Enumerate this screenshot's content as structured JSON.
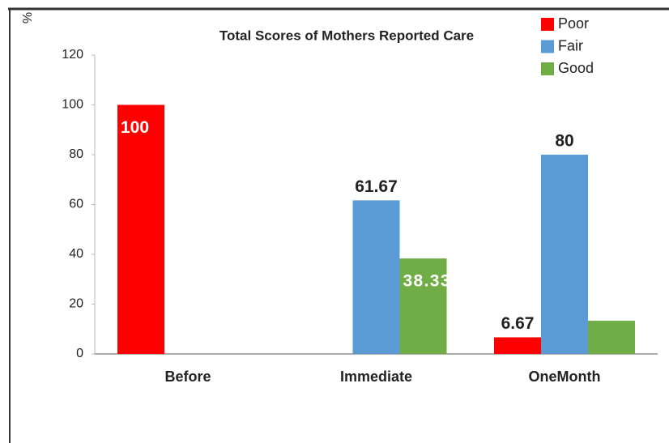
{
  "chart_data": {
    "type": "bar",
    "title": "Total Scores of Mothers Reported Care",
    "y_label": "%",
    "categories": [
      "Before",
      "Immediate",
      "OneMonth"
    ],
    "series": [
      {
        "name": "Poor",
        "color": "#ff0000",
        "values": [
          100,
          0,
          6.67
        ],
        "value_labels": [
          "100",
          null,
          "6.67"
        ]
      },
      {
        "name": "Fair",
        "color": "#5b9bd5",
        "values": [
          0,
          61.67,
          80
        ],
        "value_labels": [
          null,
          "61.67",
          "80"
        ]
      },
      {
        "name": "Good",
        "color": "#70ad47",
        "values": [
          0,
          38.33,
          13.33
        ],
        "value_labels": [
          null,
          "38.33",
          null
        ]
      }
    ],
    "ylim": [
      0,
      120
    ],
    "yticks": [
      0,
      20,
      40,
      60,
      80,
      100,
      120
    ],
    "grid": false,
    "legend": "top-right"
  }
}
